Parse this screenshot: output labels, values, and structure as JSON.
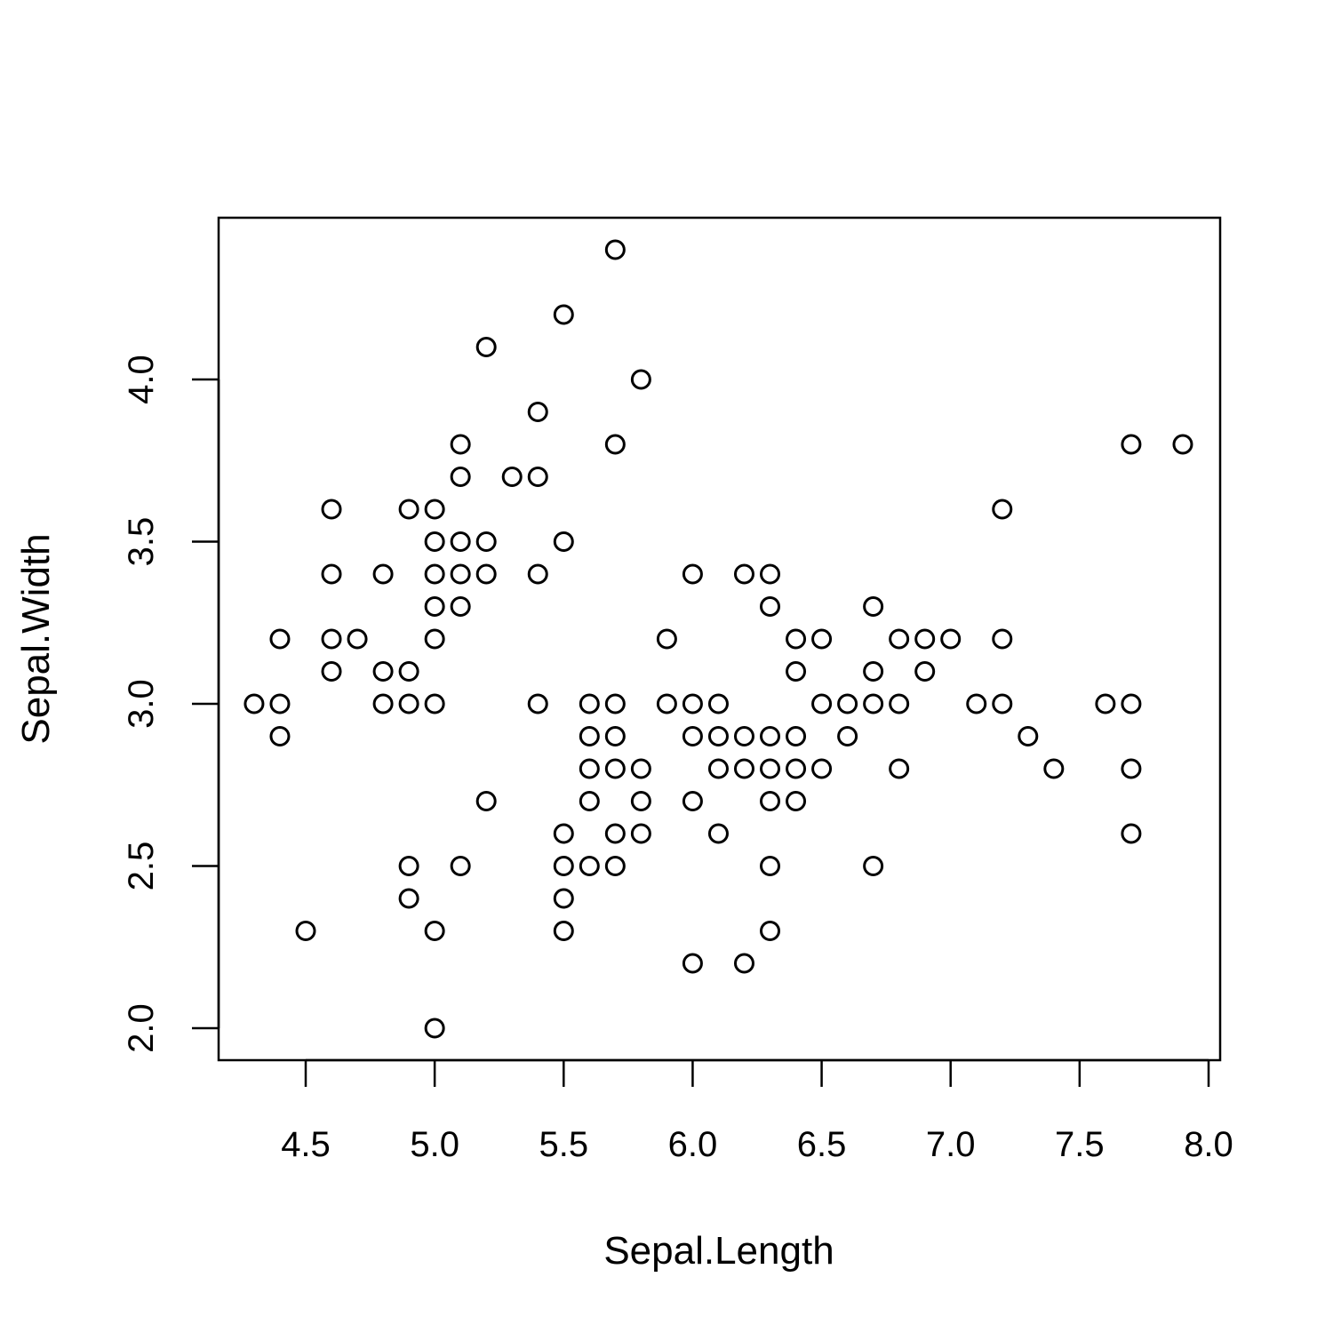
{
  "chart_data": {
    "type": "scatter",
    "title": "",
    "xlabel": "Sepal.Length",
    "ylabel": "Sepal.Width",
    "xlim": [
      4.2,
      8.05
    ],
    "ylim": [
      1.9,
      4.5
    ],
    "x_ticks": [
      "4.5",
      "5.0",
      "5.5",
      "6.0",
      "6.5",
      "7.0",
      "7.5",
      "8.0"
    ],
    "y_ticks": [
      "2.0",
      "2.5",
      "3.0",
      "3.5",
      "4.0"
    ],
    "grid": false,
    "legend": "none",
    "marker": "open-circle",
    "color": "#000000",
    "points": [
      [
        4.3,
        3.0
      ],
      [
        4.4,
        3.2
      ],
      [
        4.4,
        3.0
      ],
      [
        4.4,
        2.9
      ],
      [
        4.5,
        2.3
      ],
      [
        4.6,
        3.6
      ],
      [
        4.6,
        3.4
      ],
      [
        4.6,
        3.2
      ],
      [
        4.6,
        3.1
      ],
      [
        4.7,
        3.2
      ],
      [
        4.8,
        3.4
      ],
      [
        4.8,
        3.1
      ],
      [
        4.8,
        3.0
      ],
      [
        4.9,
        3.6
      ],
      [
        4.9,
        3.1
      ],
      [
        4.9,
        3.0
      ],
      [
        4.9,
        2.5
      ],
      [
        4.9,
        2.4
      ],
      [
        5.0,
        3.6
      ],
      [
        5.0,
        3.5
      ],
      [
        5.0,
        3.4
      ],
      [
        5.0,
        3.3
      ],
      [
        5.0,
        3.2
      ],
      [
        5.0,
        3.0
      ],
      [
        5.0,
        2.3
      ],
      [
        5.0,
        2.0
      ],
      [
        5.1,
        3.8
      ],
      [
        5.1,
        3.7
      ],
      [
        5.1,
        3.5
      ],
      [
        5.1,
        3.4
      ],
      [
        5.1,
        3.3
      ],
      [
        5.1,
        2.5
      ],
      [
        5.2,
        4.1
      ],
      [
        5.2,
        3.5
      ],
      [
        5.2,
        3.4
      ],
      [
        5.2,
        2.7
      ],
      [
        5.3,
        3.7
      ],
      [
        5.4,
        3.9
      ],
      [
        5.4,
        3.7
      ],
      [
        5.4,
        3.4
      ],
      [
        5.4,
        3.0
      ],
      [
        5.5,
        4.2
      ],
      [
        5.5,
        3.5
      ],
      [
        5.5,
        2.6
      ],
      [
        5.5,
        2.5
      ],
      [
        5.5,
        2.4
      ],
      [
        5.5,
        2.3
      ],
      [
        5.6,
        3.0
      ],
      [
        5.6,
        2.9
      ],
      [
        5.6,
        2.8
      ],
      [
        5.6,
        2.7
      ],
      [
        5.6,
        2.5
      ],
      [
        5.7,
        4.4
      ],
      [
        5.7,
        3.8
      ],
      [
        5.7,
        3.0
      ],
      [
        5.7,
        2.9
      ],
      [
        5.7,
        2.8
      ],
      [
        5.7,
        2.6
      ],
      [
        5.7,
        2.5
      ],
      [
        5.8,
        4.0
      ],
      [
        5.8,
        2.8
      ],
      [
        5.8,
        2.7
      ],
      [
        5.8,
        2.6
      ],
      [
        5.9,
        3.2
      ],
      [
        5.9,
        3.0
      ],
      [
        6.0,
        3.4
      ],
      [
        6.0,
        3.0
      ],
      [
        6.0,
        2.9
      ],
      [
        6.0,
        2.7
      ],
      [
        6.0,
        2.2
      ],
      [
        6.1,
        3.0
      ],
      [
        6.1,
        2.9
      ],
      [
        6.1,
        2.8
      ],
      [
        6.1,
        2.6
      ],
      [
        6.2,
        3.4
      ],
      [
        6.2,
        2.9
      ],
      [
        6.2,
        2.8
      ],
      [
        6.2,
        2.2
      ],
      [
        6.3,
        3.4
      ],
      [
        6.3,
        3.3
      ],
      [
        6.3,
        2.9
      ],
      [
        6.3,
        2.8
      ],
      [
        6.3,
        2.7
      ],
      [
        6.3,
        2.5
      ],
      [
        6.3,
        2.3
      ],
      [
        6.4,
        3.2
      ],
      [
        6.4,
        3.1
      ],
      [
        6.4,
        2.9
      ],
      [
        6.4,
        2.8
      ],
      [
        6.4,
        2.7
      ],
      [
        6.5,
        3.2
      ],
      [
        6.5,
        3.0
      ],
      [
        6.5,
        2.8
      ],
      [
        6.6,
        3.0
      ],
      [
        6.6,
        2.9
      ],
      [
        6.7,
        3.3
      ],
      [
        6.7,
        3.1
      ],
      [
        6.7,
        3.0
      ],
      [
        6.7,
        2.5
      ],
      [
        6.8,
        3.2
      ],
      [
        6.8,
        3.0
      ],
      [
        6.8,
        2.8
      ],
      [
        6.9,
        3.2
      ],
      [
        6.9,
        3.1
      ],
      [
        7.0,
        3.2
      ],
      [
        7.1,
        3.0
      ],
      [
        7.2,
        3.6
      ],
      [
        7.2,
        3.2
      ],
      [
        7.2,
        3.0
      ],
      [
        7.3,
        2.9
      ],
      [
        7.4,
        2.8
      ],
      [
        7.6,
        3.0
      ],
      [
        7.7,
        3.8
      ],
      [
        7.7,
        3.0
      ],
      [
        7.7,
        2.8
      ],
      [
        7.7,
        2.6
      ],
      [
        7.9,
        3.8
      ]
    ]
  }
}
